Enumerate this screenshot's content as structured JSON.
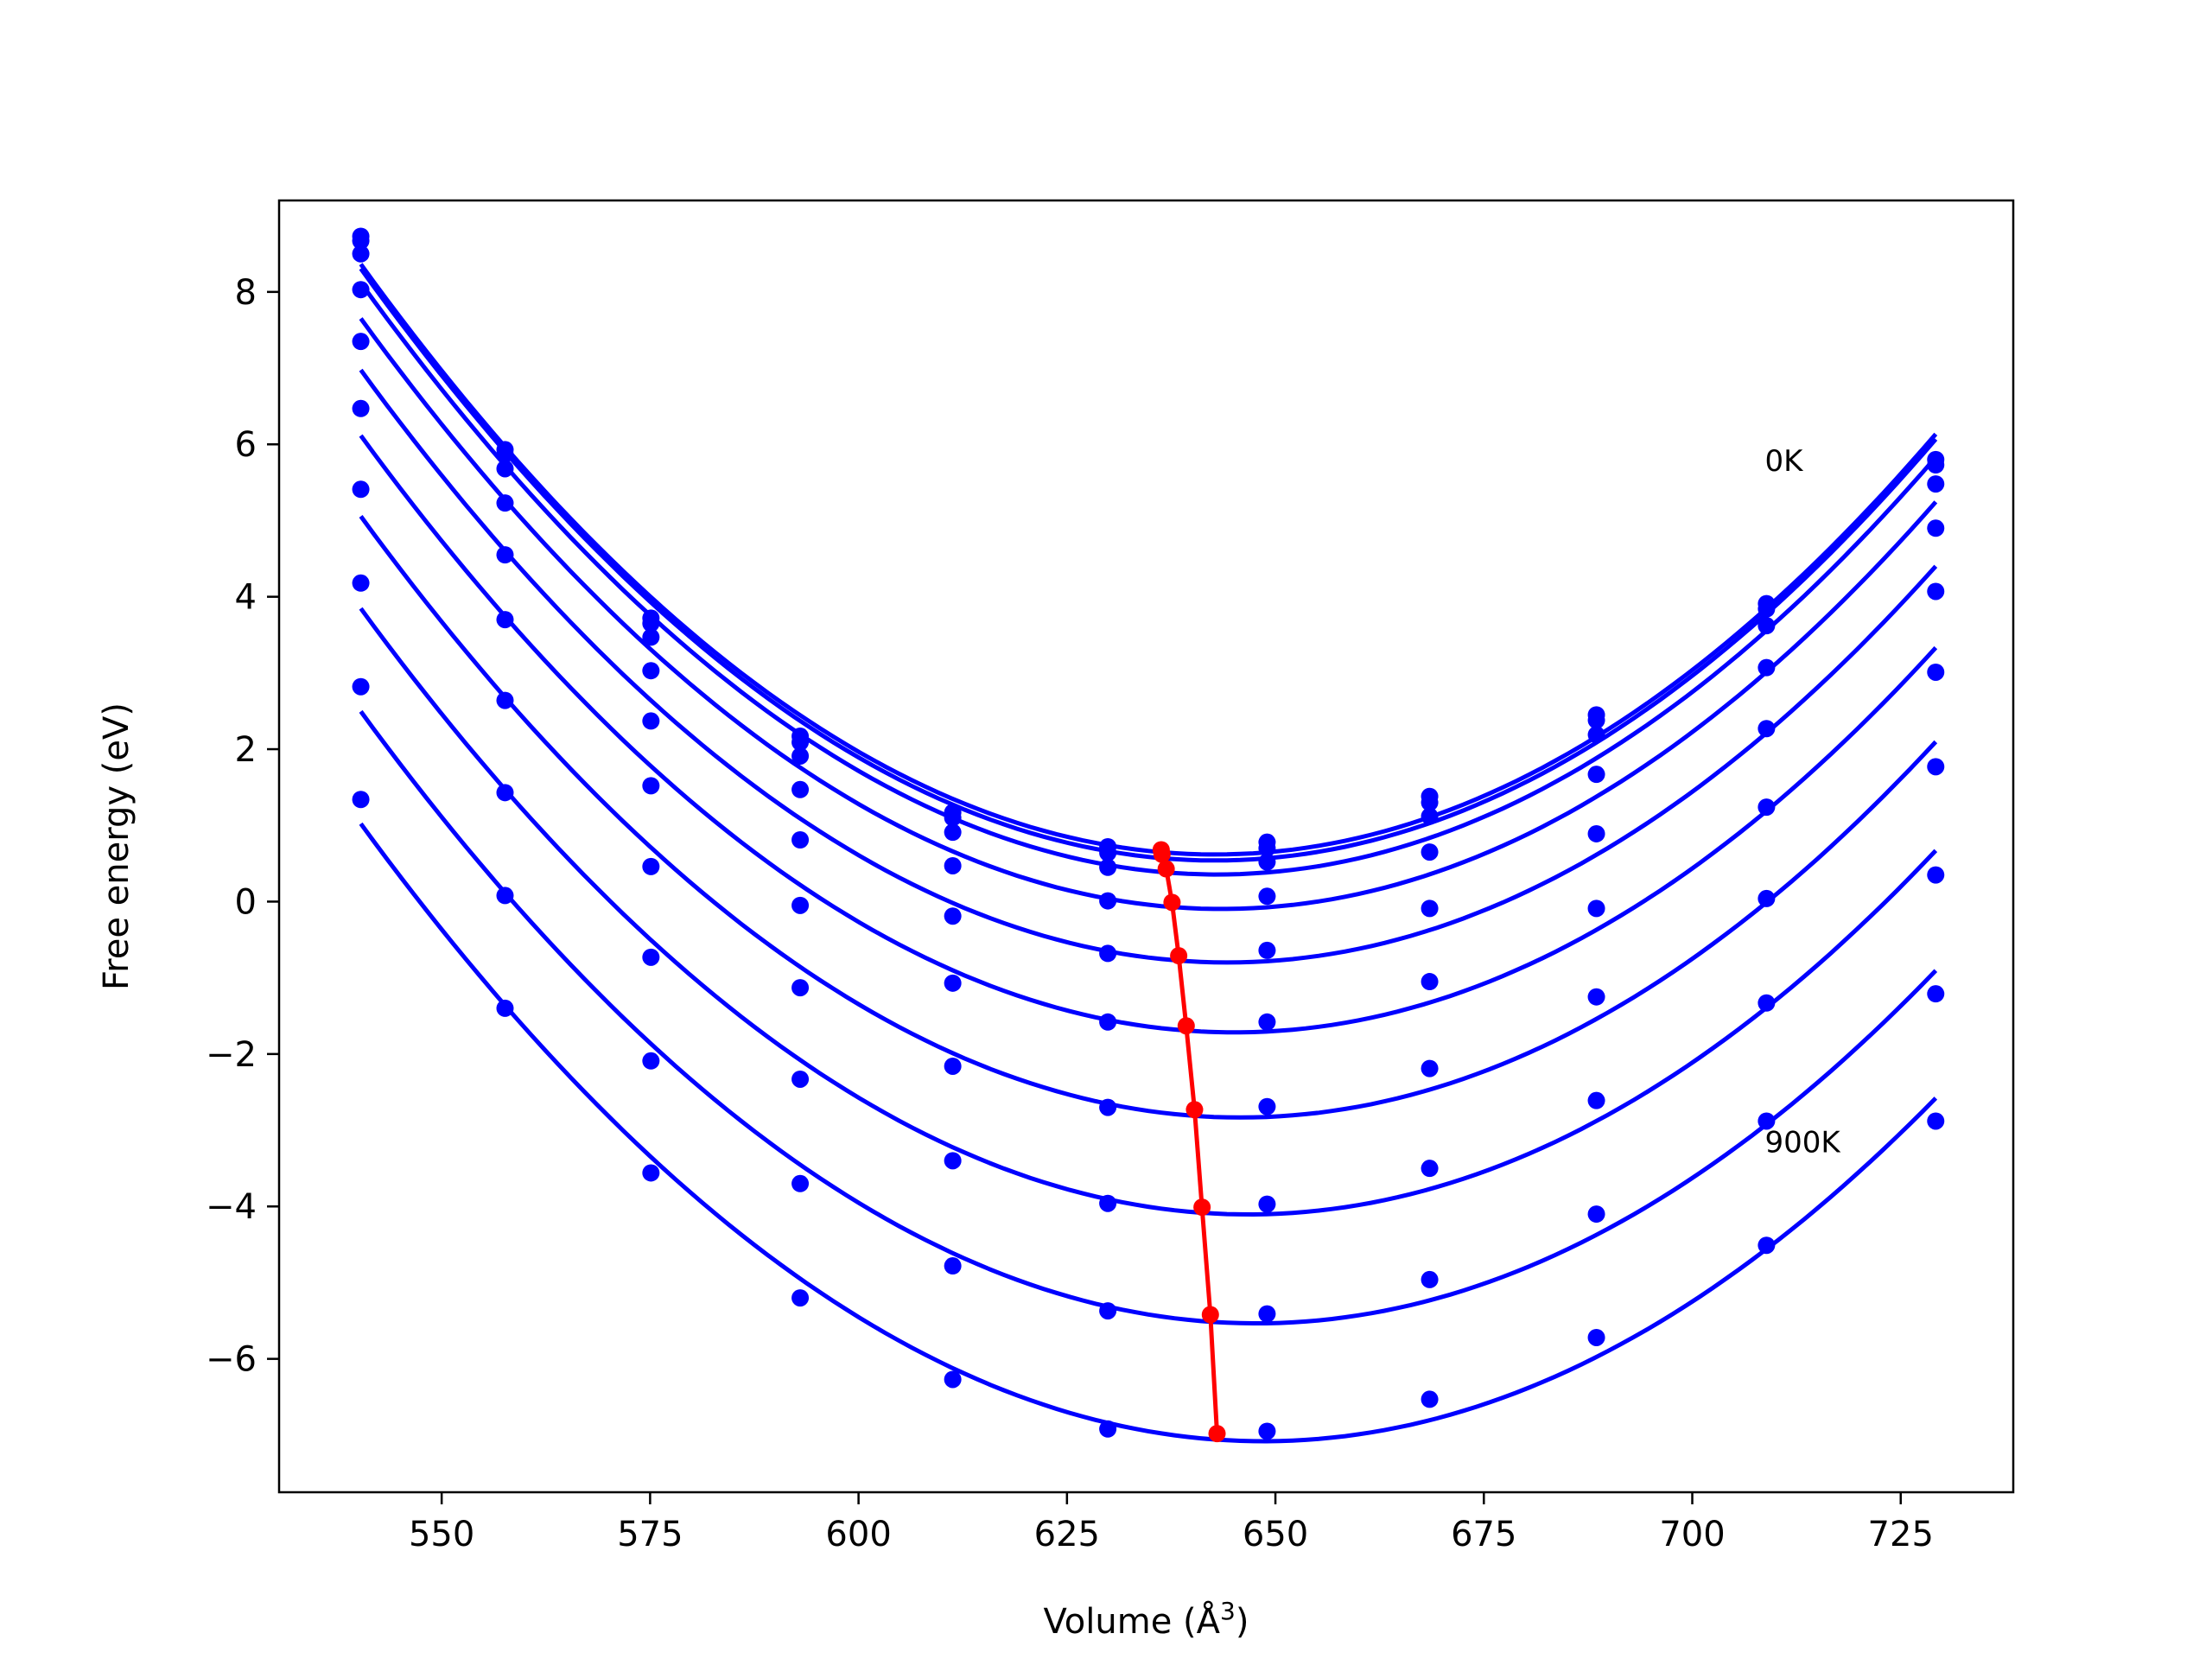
{
  "chart_data": {
    "type": "line",
    "title": "",
    "xlabel": "Volume (Å",
    "xlabel_sup": "3",
    "xlabel_close": ")",
    "ylabel": "Free energy (eV)",
    "xlim": [
      530.5,
      738.5
    ],
    "ylim": [
      -7.75,
      9.2
    ],
    "xticks": [
      550,
      575,
      600,
      625,
      650,
      675,
      700,
      725
    ],
    "xtick_labels": [
      "550",
      "575",
      "600",
      "625",
      "650",
      "675",
      "700",
      "725"
    ],
    "yticks": [
      -6,
      -4,
      -2,
      0,
      2,
      4,
      6,
      8
    ],
    "ytick_labels": [
      "−6",
      "−4",
      "−2",
      "0",
      "2",
      "4",
      "6",
      "8"
    ],
    "grid": false,
    "x": [
      540.3,
      557.6,
      575.1,
      593.0,
      611.3,
      629.9,
      649.0,
      668.5,
      688.5,
      708.9,
      729.2
    ],
    "curve_color": "#0000ff",
    "minimum_color": "#ff0000",
    "series": [
      {
        "values": [
          8.73,
          5.93,
          3.72,
          2.17,
          1.17,
          0.72,
          0.78,
          1.38,
          2.45,
          3.91,
          5.8
        ],
        "min_x": 636.3,
        "min_y": 0.68
      },
      {
        "values": [
          8.67,
          5.87,
          3.65,
          2.09,
          1.1,
          0.64,
          0.7,
          1.3,
          2.38,
          3.84,
          5.73
        ],
        "min_x": 636.4,
        "min_y": 0.62
      },
      {
        "values": [
          8.5,
          5.68,
          3.47,
          1.91,
          0.91,
          0.45,
          0.52,
          1.12,
          2.19,
          3.62,
          5.48
        ],
        "min_x": 636.9,
        "min_y": 0.43
      },
      {
        "values": [
          8.03,
          5.23,
          3.03,
          1.47,
          0.47,
          0.01,
          0.07,
          0.65,
          1.67,
          3.07,
          4.9
        ],
        "min_x": 637.6,
        "min_y": -0.01
      },
      {
        "values": [
          7.35,
          4.55,
          2.37,
          0.81,
          -0.19,
          -0.68,
          -0.64,
          -0.09,
          0.89,
          2.27,
          4.07
        ],
        "min_x": 638.4,
        "min_y": -0.71
      },
      {
        "values": [
          6.47,
          3.7,
          1.52,
          -0.05,
          -1.07,
          -1.58,
          -1.58,
          -1.05,
          -0.09,
          1.24,
          3.01
        ],
        "min_x": 639.3,
        "min_y": -1.63
      },
      {
        "values": [
          5.41,
          2.64,
          0.46,
          -1.13,
          -2.16,
          -2.7,
          -2.69,
          -2.19,
          -1.25,
          0.04,
          1.77
        ],
        "min_x": 640.3,
        "min_y": -2.73
      },
      {
        "values": [
          4.18,
          1.43,
          -0.73,
          -2.33,
          -3.4,
          -3.96,
          -3.97,
          -3.5,
          -2.61,
          -1.33,
          0.35
        ],
        "min_x": 641.2,
        "min_y": -4.01
      },
      {
        "values": [
          2.82,
          0.08,
          -2.09,
          -3.7,
          -4.78,
          -5.37,
          -5.41,
          -4.96,
          -4.1,
          -2.88,
          -1.21
        ],
        "min_x": 642.2,
        "min_y": -5.42
      },
      {
        "values": [
          1.34,
          -1.4,
          -3.56,
          -5.2,
          -6.27,
          -6.92,
          -6.95,
          -6.53,
          -5.72,
          -4.51,
          -2.88
        ],
        "min_x": 643.0,
        "min_y": -6.98
      }
    ],
    "annotations": [
      {
        "text": "0K",
        "x": 708.7,
        "y": 5.79
      },
      {
        "text": "900K",
        "x": 708.7,
        "y": -3.15
      }
    ]
  }
}
